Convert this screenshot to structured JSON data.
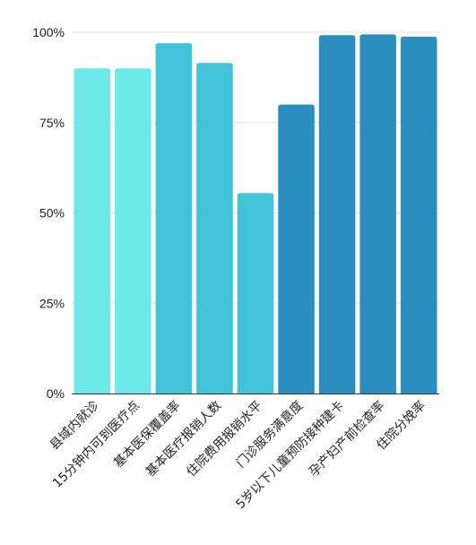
{
  "chart_data": {
    "type": "bar",
    "title": "",
    "xlabel": "",
    "ylabel": "",
    "ylim": [
      0,
      100
    ],
    "y_ticks": [
      {
        "value": 0,
        "label": "0%"
      },
      {
        "value": 25,
        "label": "25%"
      },
      {
        "value": 50,
        "label": "50%"
      },
      {
        "value": 75,
        "label": "75%"
      },
      {
        "value": 100,
        "label": "100%"
      }
    ],
    "grid": true,
    "legend": "none",
    "categories": [
      "县域内就诊",
      "15分钟内可到医疗点",
      "基本医保覆盖率",
      "基本医疗报销人数",
      "住院费用报销水平",
      "门诊服务满意度",
      "5岁以下儿童预防接种建卡",
      "孕产妇产前检查率",
      "住院分娩率"
    ],
    "values": [
      90,
      90,
      97,
      91.5,
      55.5,
      80,
      99.2,
      99.4,
      98.8
    ],
    "colors": [
      "#6ee8e8",
      "#6ee8e8",
      "#43c3d8",
      "#43c3d8",
      "#43c3d8",
      "#2a8fbe",
      "#2a8fbe",
      "#2a8fbe",
      "#2a8fbe"
    ]
  }
}
